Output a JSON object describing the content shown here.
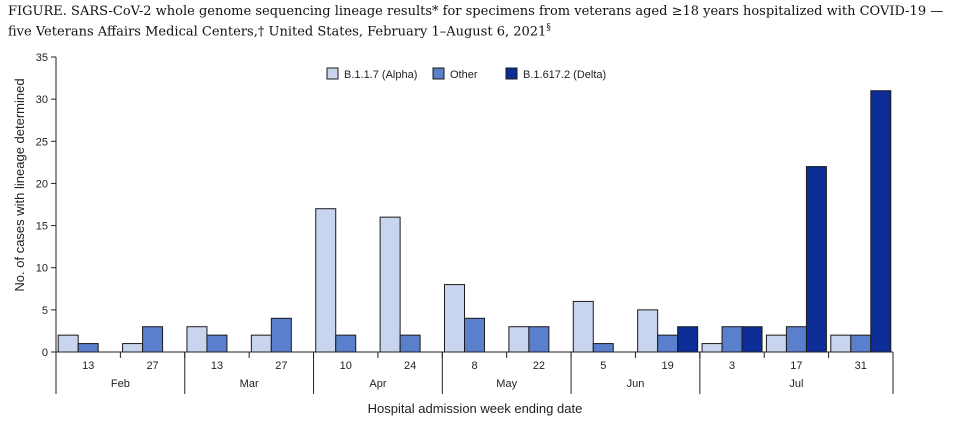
{
  "title": {
    "text": "FIGURE. SARS-CoV-2 whole genome sequencing lineage results* for specimens from veterans aged ≥18 years hospitalized with COVID-19 — five Veterans Affairs Medical Centers,† United States, February 1–August 6, 2021§"
  },
  "chart_data": {
    "type": "bar",
    "title": "FIGURE. SARS-CoV-2 whole genome sequencing lineage results* for specimens from veterans aged ≥18 years hospitalized with COVID-19 — five Veterans Affairs Medical Centers,† United States, February 1–August 6, 2021§",
    "xlabel": "Hospital admission week ending date",
    "ylabel": "No. of cases with lineage determined",
    "ylim": [
      0,
      35
    ],
    "yticks": [
      0,
      5,
      10,
      15,
      20,
      25,
      30,
      35
    ],
    "grid": false,
    "legend_position": "top-center",
    "categories": [
      "13",
      "27",
      "13",
      "27",
      "10",
      "24",
      "8",
      "22",
      "5",
      "19",
      "3",
      "17",
      "31"
    ],
    "months": [
      {
        "label": "Feb",
        "start": 0,
        "end": 1
      },
      {
        "label": "Mar",
        "start": 2,
        "end": 3
      },
      {
        "label": "Apr",
        "start": 4,
        "end": 5
      },
      {
        "label": "May",
        "start": 6,
        "end": 7
      },
      {
        "label": "Jun",
        "start": 8,
        "end": 9
      },
      {
        "label": "Jul",
        "start": 10,
        "end": 12
      }
    ],
    "series": [
      {
        "name": "B.1.1.7 (Alpha)",
        "color": "#c9d5ee",
        "values": [
          2,
          1,
          3,
          2,
          17,
          16,
          8,
          3,
          6,
          5,
          1,
          2,
          2
        ]
      },
      {
        "name": "Other",
        "color": "#5a7fcc",
        "values": [
          1,
          3,
          2,
          4,
          2,
          2,
          4,
          3,
          1,
          2,
          3,
          3,
          2
        ]
      },
      {
        "name": "B.1.617.2 (Delta)",
        "color": "#0c2d98",
        "values": [
          0,
          0,
          0,
          0,
          0,
          0,
          0,
          0,
          0,
          3,
          3,
          22,
          31
        ]
      }
    ]
  }
}
